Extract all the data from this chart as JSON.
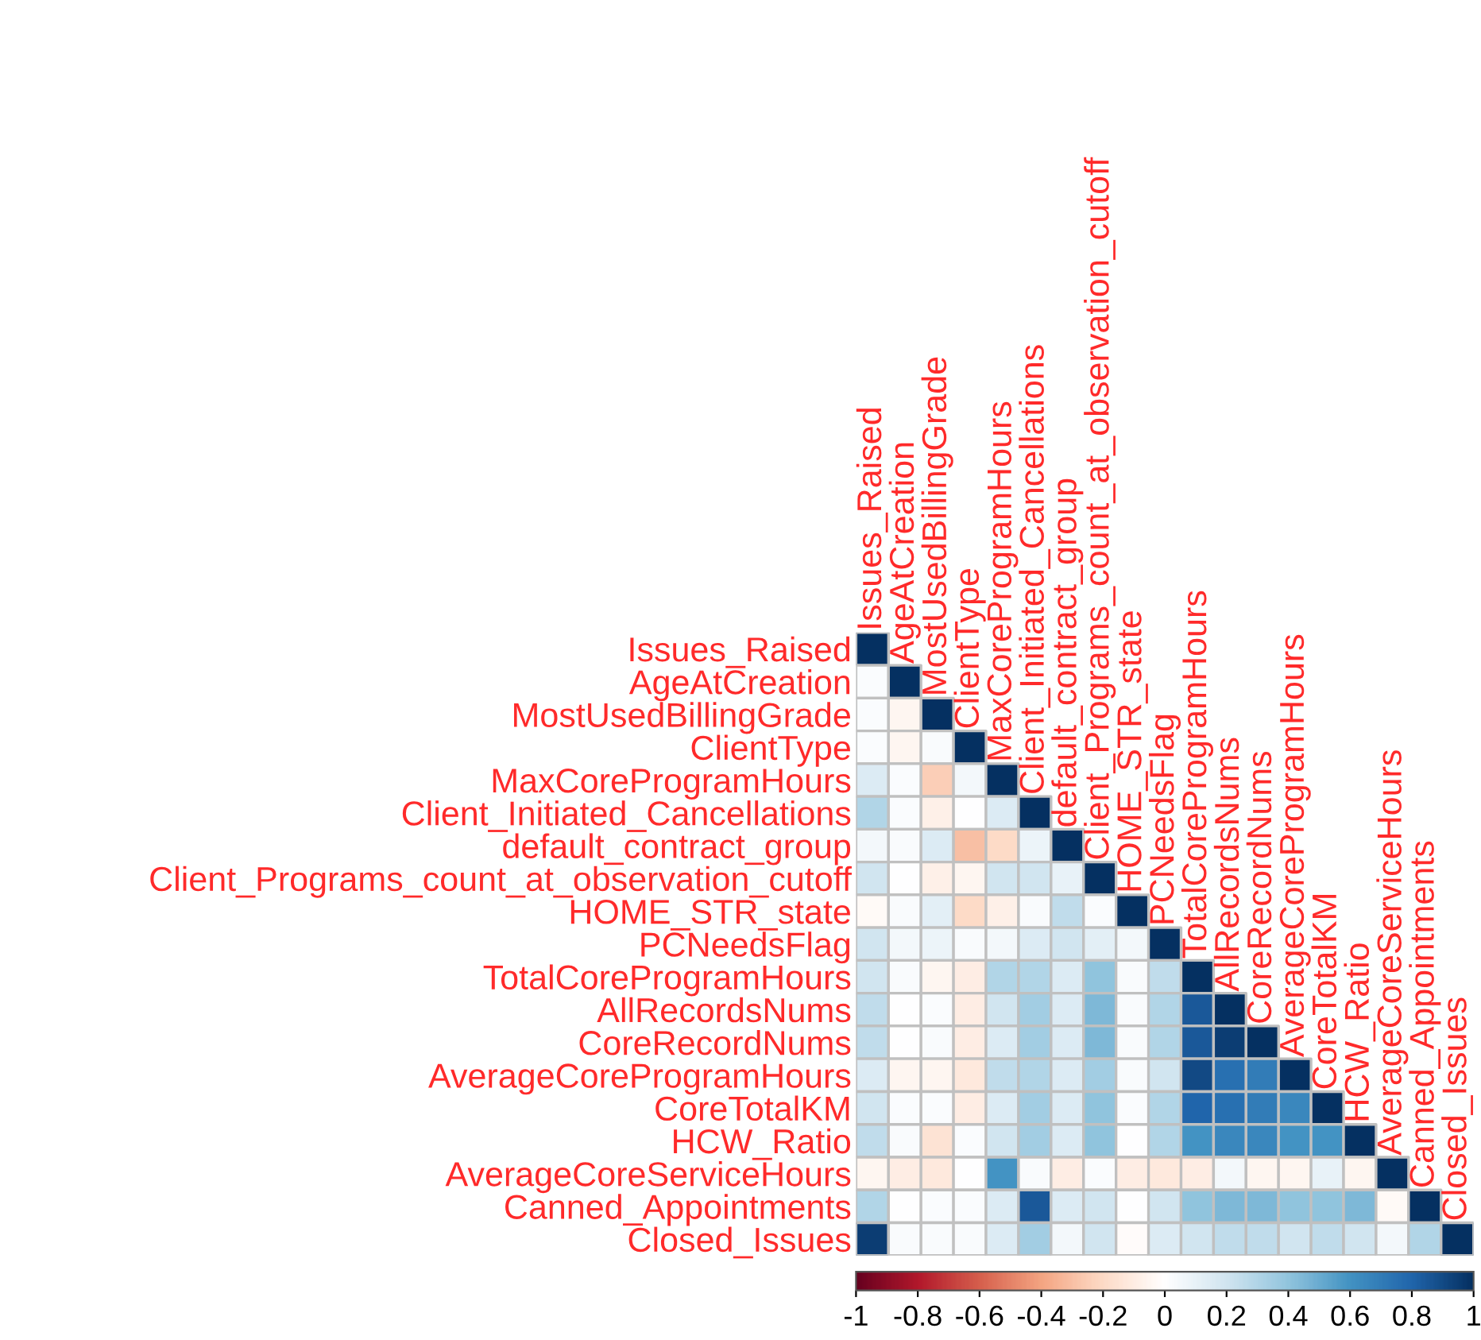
{
  "chart_data": {
    "type": "heatmap",
    "categories": [
      "Issues_Raised",
      "AgeAtCreation",
      "MostUsedBillingGrade",
      "ClientType",
      "MaxCoreProgramHours",
      "Client_Initiated_Cancellations",
      "default_contract_group",
      "Client_Programs_count_at_observation_cutoff",
      "HOME_STR_state",
      "PCNeedsFlag",
      "TotalCoreProgramHours",
      "AllRecordsNums",
      "CoreRecordNums",
      "AverageCoreProgramHours",
      "CoreTotalKM",
      "HCW_Ratio",
      "AverageCoreServiceHours",
      "Canned_Appointments",
      "Closed_Issues"
    ],
    "y_categories": [
      "Issues_Raised",
      "AgeAtCreation",
      "MostUsedBillingGrade",
      "ClientType",
      "MaxCoreProgramHours",
      "Client_Initiated_Cancellations",
      "default_contract_group",
      "Client_Programs_count_at_observation_cutoff",
      "HOME_STR_state",
      "PCNeedsFlag",
      "TotalCoreProgramHours",
      "AllRecordsNums",
      "CoreRecordNums",
      "AverageCoreProgramHours",
      "CoreTotalKM",
      "HCW_Ratio",
      "AverageCoreServiceHours",
      "Canned_Appointments",
      "Closed_Issues"
    ],
    "cells": [
      [
        1,
        null,
        null,
        null,
        null,
        null,
        null,
        null,
        null,
        null,
        null,
        null,
        null,
        null,
        null,
        null,
        null,
        null,
        null
      ],
      [
        0.02,
        1,
        null,
        null,
        null,
        null,
        null,
        null,
        null,
        null,
        null,
        null,
        null,
        null,
        null,
        null,
        null,
        null,
        null
      ],
      [
        0.02,
        -0.05,
        1,
        null,
        null,
        null,
        null,
        null,
        null,
        null,
        null,
        null,
        null,
        null,
        null,
        null,
        null,
        null,
        null
      ],
      [
        0.02,
        -0.05,
        0.03,
        1,
        null,
        null,
        null,
        null,
        null,
        null,
        null,
        null,
        null,
        null,
        null,
        null,
        null,
        null,
        null
      ],
      [
        0.15,
        0.02,
        -0.25,
        0.05,
        1,
        null,
        null,
        null,
        null,
        null,
        null,
        null,
        null,
        null,
        null,
        null,
        null,
        null,
        null
      ],
      [
        0.3,
        0.02,
        -0.08,
        0.0,
        0.15,
        1,
        null,
        null,
        null,
        null,
        null,
        null,
        null,
        null,
        null,
        null,
        null,
        null,
        null
      ],
      [
        0.05,
        0.03,
        0.15,
        -0.3,
        -0.2,
        0.08,
        1,
        null,
        null,
        null,
        null,
        null,
        null,
        null,
        null,
        null,
        null,
        null,
        null
      ],
      [
        0.2,
        0.0,
        -0.08,
        -0.05,
        0.2,
        0.2,
        0.1,
        1,
        null,
        null,
        null,
        null,
        null,
        null,
        null,
        null,
        null,
        null,
        null
      ],
      [
        -0.03,
        0.03,
        0.12,
        -0.2,
        -0.08,
        0.03,
        0.25,
        0.02,
        1,
        null,
        null,
        null,
        null,
        null,
        null,
        null,
        null,
        null,
        null
      ],
      [
        0.2,
        0.05,
        0.08,
        0.03,
        0.05,
        0.15,
        0.2,
        0.12,
        0.05,
        1,
        null,
        null,
        null,
        null,
        null,
        null,
        null,
        null,
        null
      ],
      [
        0.2,
        0.03,
        -0.05,
        -0.1,
        0.3,
        0.3,
        0.15,
        0.4,
        0.03,
        0.25,
        1,
        null,
        null,
        null,
        null,
        null,
        null,
        null,
        null
      ],
      [
        0.25,
        0.0,
        0.02,
        -0.1,
        0.2,
        0.35,
        0.15,
        0.45,
        0.03,
        0.3,
        0.85,
        1,
        null,
        null,
        null,
        null,
        null,
        null,
        null
      ],
      [
        0.25,
        0.0,
        0.03,
        -0.1,
        0.15,
        0.35,
        0.15,
        0.45,
        0.03,
        0.3,
        0.85,
        0.95,
        1,
        null,
        null,
        null,
        null,
        null,
        null
      ],
      [
        0.15,
        -0.05,
        -0.05,
        -0.12,
        0.25,
        0.3,
        0.15,
        0.35,
        0.03,
        0.2,
        0.9,
        0.75,
        0.7,
        1,
        null,
        null,
        null,
        null,
        null
      ],
      [
        0.2,
        0.02,
        0.02,
        -0.1,
        0.15,
        0.35,
        0.15,
        0.4,
        0.02,
        0.3,
        0.8,
        0.75,
        0.7,
        0.65,
        1,
        null,
        null,
        null,
        null
      ],
      [
        0.25,
        0.03,
        -0.15,
        0.02,
        0.2,
        0.35,
        0.15,
        0.4,
        0.0,
        0.3,
        0.6,
        0.65,
        0.65,
        0.6,
        0.6,
        1,
        null,
        null,
        null
      ],
      [
        -0.05,
        -0.1,
        -0.12,
        0.0,
        0.6,
        0.03,
        -0.1,
        0.02,
        -0.1,
        -0.12,
        -0.1,
        0.05,
        -0.05,
        -0.05,
        0.1,
        -0.05,
        1,
        null,
        null
      ],
      [
        0.3,
        0.0,
        0.02,
        0.02,
        0.15,
        0.85,
        0.15,
        0.2,
        0.0,
        0.2,
        0.4,
        0.45,
        0.45,
        0.4,
        0.4,
        0.45,
        -0.03,
        1,
        null
      ],
      [
        0.95,
        0.03,
        0.03,
        0.03,
        0.15,
        0.35,
        0.05,
        0.2,
        -0.02,
        0.15,
        0.2,
        0.25,
        0.25,
        0.2,
        0.25,
        0.2,
        0.05,
        0.3,
        1
      ]
    ],
    "clim": [
      -1,
      1
    ],
    "cticks": [
      -1,
      -0.8,
      -0.6,
      -0.4,
      -0.2,
      0,
      0.2,
      0.4,
      0.6,
      0.8,
      1
    ]
  }
}
